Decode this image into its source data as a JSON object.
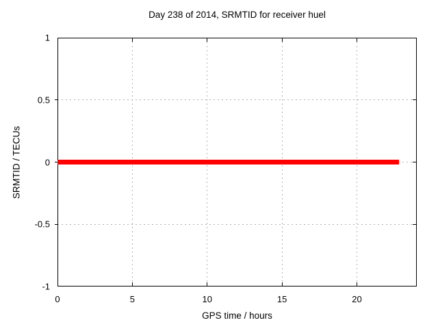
{
  "chart_data": {
    "type": "line",
    "title": "Day 238 of 2014, SRMTID for receiver huel",
    "xlabel": "GPS time / hours",
    "ylabel": "SRMTID / TECUs",
    "xlim": [
      0,
      24
    ],
    "ylim": [
      -1,
      1
    ],
    "grid": true,
    "legend": "none",
    "background_color": "#ffffff",
    "border_color": "#000000",
    "grid_color": "#b0b0b0",
    "text_color": "#000000",
    "xticks": [
      {
        "v": 0,
        "label": "0"
      },
      {
        "v": 5,
        "label": "5"
      },
      {
        "v": 10,
        "label": "10"
      },
      {
        "v": 15,
        "label": "15"
      },
      {
        "v": 20,
        "label": "20"
      }
    ],
    "yticks": [
      {
        "v": -1,
        "label": "-1"
      },
      {
        "v": -0.5,
        "label": "-0.5"
      },
      {
        "v": 0,
        "label": "0"
      },
      {
        "v": 0.5,
        "label": "0.5"
      },
      {
        "v": 1,
        "label": "1"
      }
    ],
    "series": [
      {
        "name": "SRMTID",
        "color": "#ff0000",
        "linewidth": 7,
        "x": [
          0,
          22.8
        ],
        "y": [
          0,
          0
        ]
      }
    ]
  }
}
